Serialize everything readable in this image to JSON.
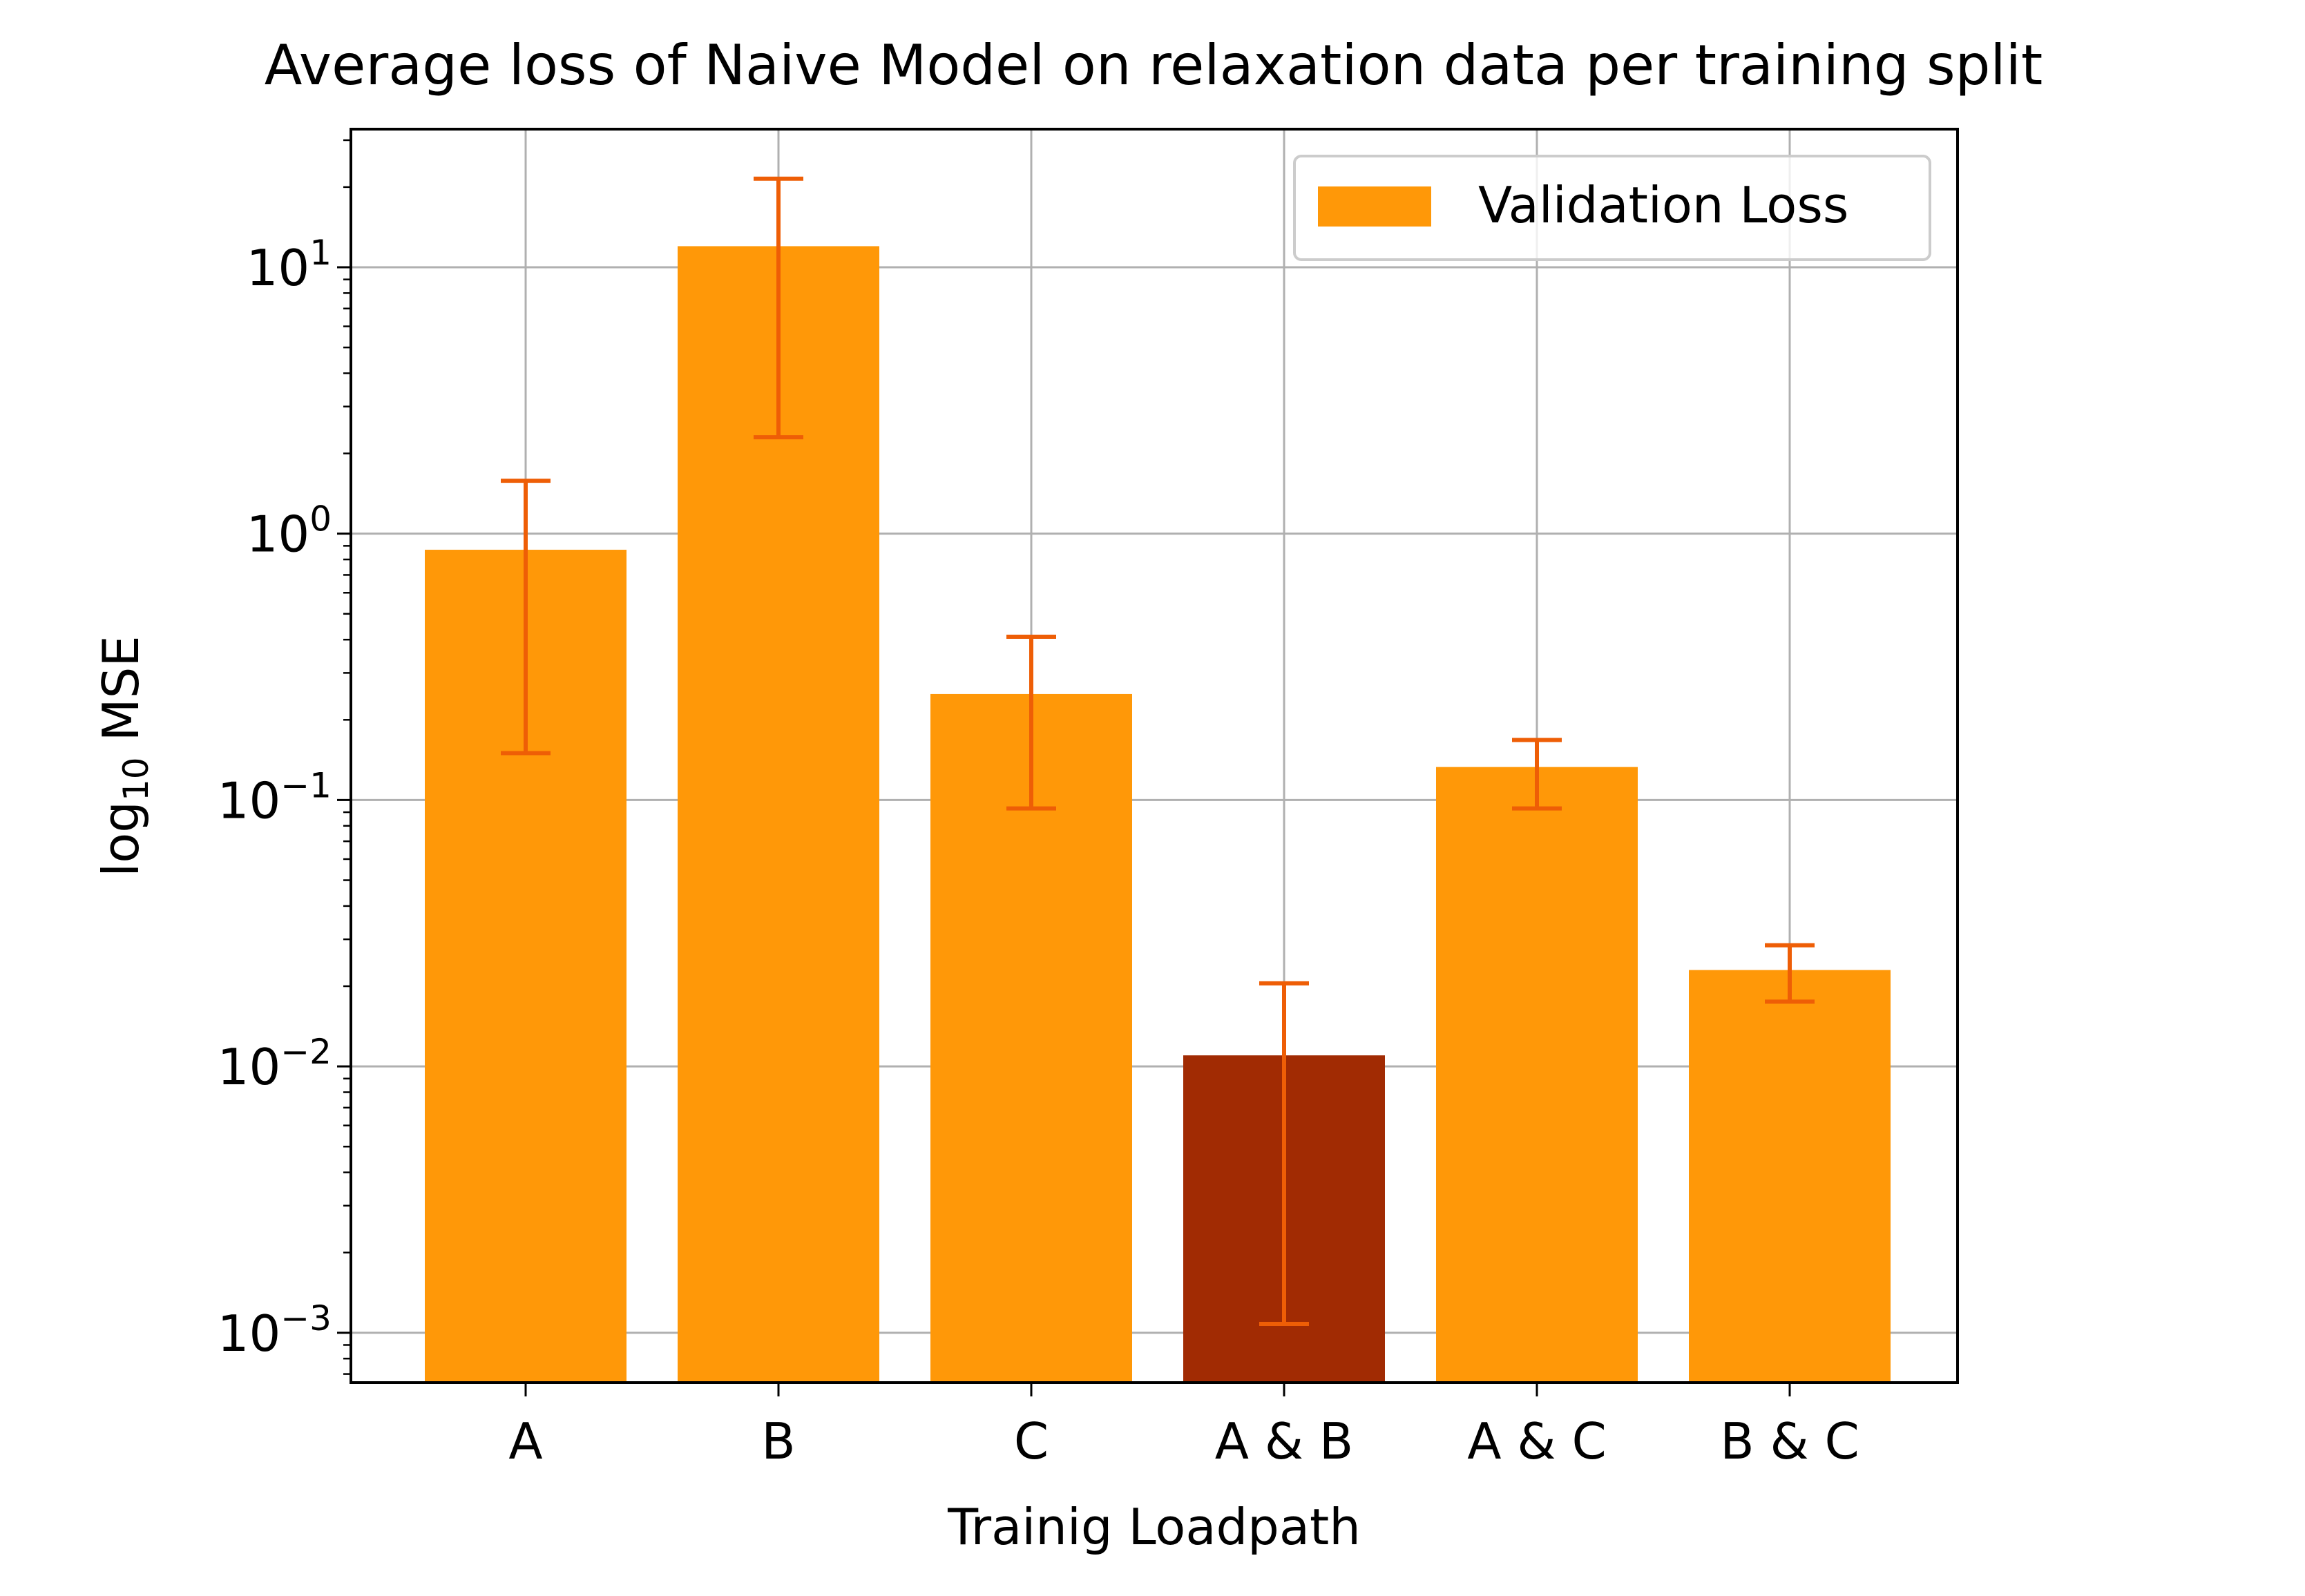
{
  "chart_data": {
    "type": "bar",
    "title": "Average loss of Naive Model on relaxation data per training split",
    "xlabel": "Trainig Loadpath",
    "ylabel_base": "log",
    "ylabel_sub": "10",
    "ylabel_rest": " MSE",
    "yscale": "log",
    "ylim": [
      0.00065,
      33
    ],
    "grid": true,
    "legend_position": "upper right",
    "categories": [
      "A",
      "B",
      "C",
      "A & B",
      "A & C",
      "B & C"
    ],
    "series": [
      {
        "name": "Validation Loss",
        "values": [
          0.87,
          12.0,
          0.25,
          0.011,
          0.133,
          0.023
        ],
        "err_low": [
          0.15,
          2.3,
          0.093,
          0.00108,
          0.093,
          0.0175
        ],
        "err_high": [
          1.58,
          21.5,
          0.41,
          0.0205,
          0.168,
          0.0285
        ]
      }
    ],
    "highlight_index": 3,
    "y_ticks": [
      {
        "value": 0.001,
        "base": "10",
        "exp": "−3"
      },
      {
        "value": 0.01,
        "base": "10",
        "exp": "−2"
      },
      {
        "value": 0.1,
        "base": "10",
        "exp": "−1"
      },
      {
        "value": 1,
        "base": "10",
        "exp": "0"
      },
      {
        "value": 10,
        "base": "10",
        "exp": "1"
      }
    ],
    "colors": {
      "bar": "#FF9808",
      "highlight": "#A12B03",
      "error": "#EE5E06",
      "grid": "#b0b0b0",
      "axis": "#000000"
    }
  }
}
